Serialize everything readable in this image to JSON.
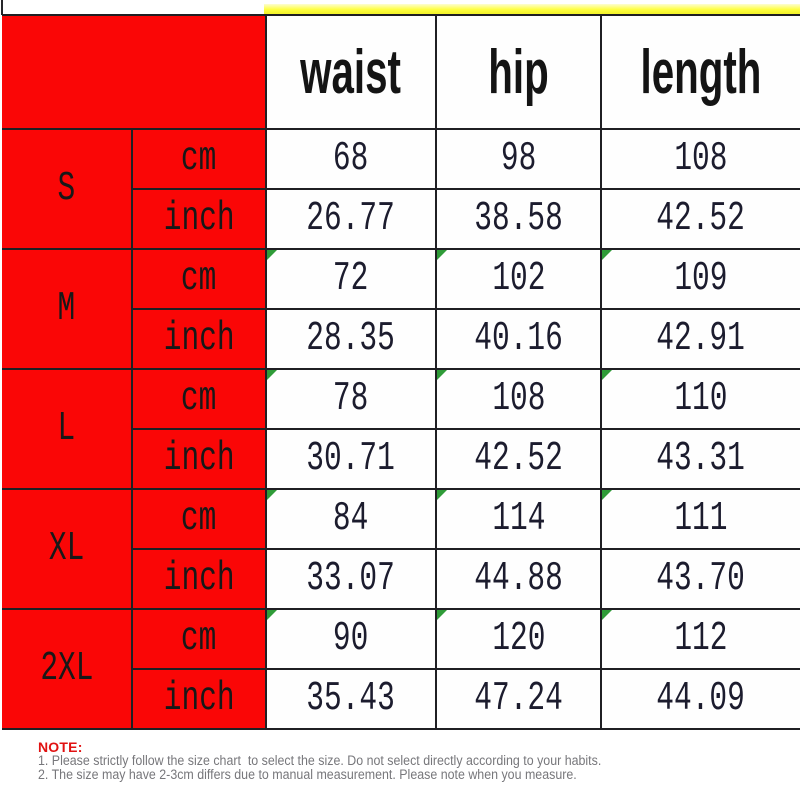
{
  "table": {
    "columns": [
      "waist",
      "hip",
      "length"
    ],
    "units": [
      "cm",
      "inch"
    ],
    "sizes": [
      {
        "label": "S",
        "flagged": false,
        "cm": [
          "68",
          "98",
          "108"
        ],
        "inch": [
          "26.77",
          "38.58",
          "42.52"
        ]
      },
      {
        "label": "M",
        "flagged": true,
        "cm": [
          "72",
          "102",
          "109"
        ],
        "inch": [
          "28.35",
          "40.16",
          "42.91"
        ]
      },
      {
        "label": "L",
        "flagged": true,
        "cm": [
          "78",
          "108",
          "110"
        ],
        "inch": [
          "30.71",
          "42.52",
          "43.31"
        ]
      },
      {
        "label": "XL",
        "flagged": true,
        "cm": [
          "84",
          "114",
          "111"
        ],
        "inch": [
          "33.07",
          "44.88",
          "43.70"
        ]
      },
      {
        "label": "2XL",
        "flagged": true,
        "cm": [
          "90",
          "120",
          "112"
        ],
        "inch": [
          "35.43",
          "47.24",
          "44.09"
        ]
      }
    ],
    "colors": {
      "red_fill": "#fa0606",
      "yellow_strip": "#feff40",
      "flag_triangle_green": "#2f9b38",
      "grid_border": "#1f1f23"
    }
  },
  "note": {
    "heading": "NOTE:",
    "heading_color": "#e11212",
    "text_color": "#77777b",
    "lines": [
      "1. Please strictly follow the size chart  to select the size. Do not select directly according to your habits.",
      "2. The size may have 2-3cm differs due to manual measurement. Please note when you measure."
    ]
  }
}
